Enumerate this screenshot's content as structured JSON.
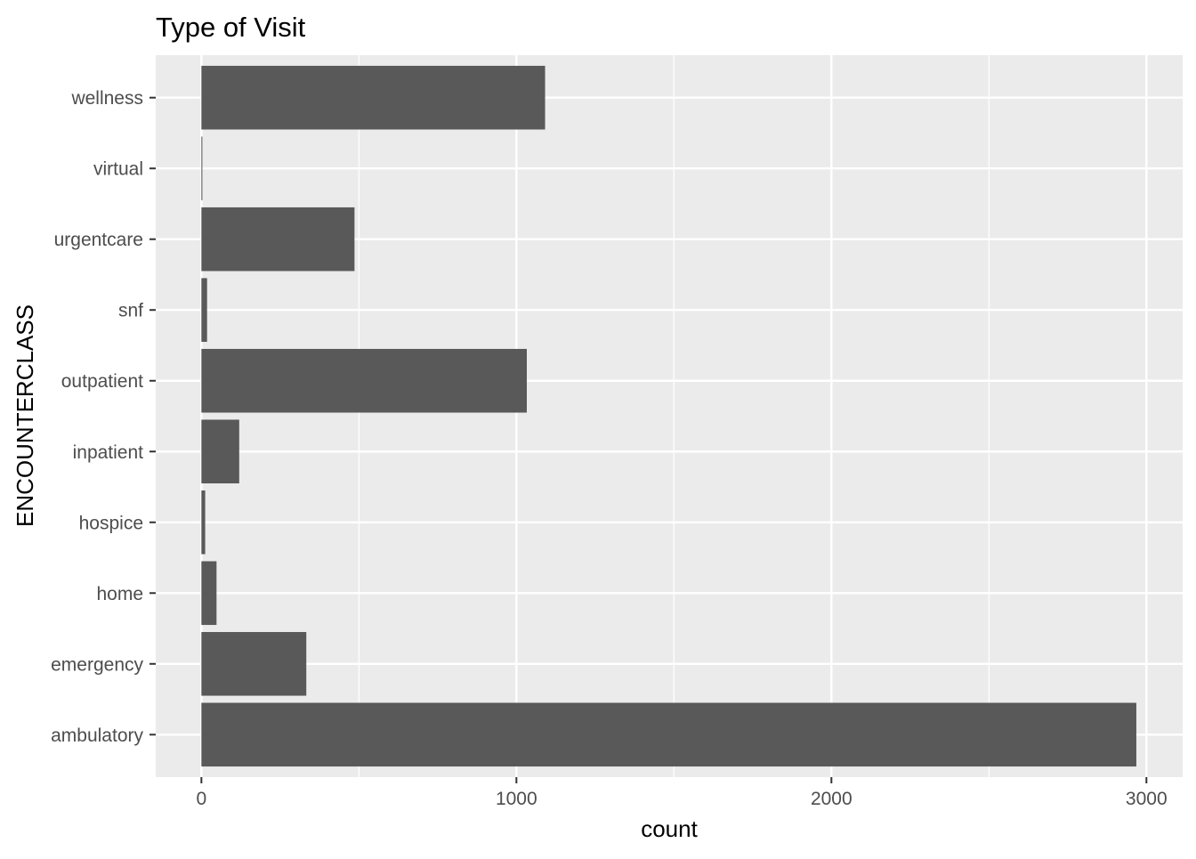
{
  "chart_data": {
    "type": "bar",
    "orientation": "horizontal",
    "title": "Type of Visit",
    "xlabel": "count",
    "ylabel": "ENCOUNTERCLASS",
    "categories": [
      "ambulatory",
      "emergency",
      "home",
      "hospice",
      "inpatient",
      "outpatient",
      "snf",
      "urgentcare",
      "virtual",
      "wellness"
    ],
    "values": [
      2968,
      333,
      48,
      12,
      120,
      1033,
      18,
      486,
      3,
      1091
    ],
    "xlim": [
      -145,
      3115
    ],
    "xticks": [
      0,
      1000,
      2000,
      3000
    ],
    "xtick_labels": [
      "0",
      "1000",
      "2000",
      "3000"
    ],
    "grid": true,
    "legend": "none",
    "colors": {
      "bar": "#595959",
      "panel": "#ebebeb",
      "grid": "#ffffff",
      "tick_label": "#4d4d4d",
      "tick_mark": "#333333",
      "title": "#000000"
    }
  }
}
